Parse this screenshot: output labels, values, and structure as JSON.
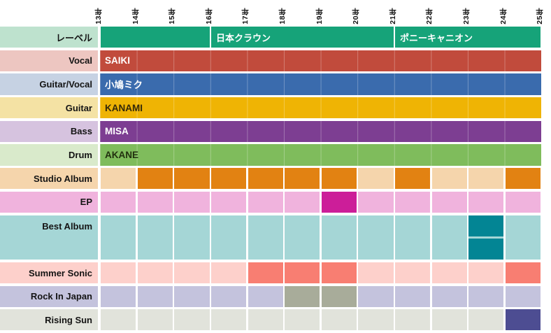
{
  "axis": {
    "year_labels": [
      "13年",
      "14年",
      "15年",
      "16年",
      "17年",
      "18年",
      "19年",
      "20年",
      "21年",
      "22年",
      "23年",
      "24年",
      "25年"
    ]
  },
  "rows": [
    {
      "id": "label-row",
      "label": "レーベル",
      "type": "segments",
      "labelBg": "#BEE2CE",
      "color": "#16A379",
      "textColor": "#FFFFFF",
      "segments": [
        {
          "from": 0,
          "to": 3,
          "text": ""
        },
        {
          "from": 3,
          "to": 8,
          "text": "日本クラウン"
        },
        {
          "from": 8,
          "to": 12,
          "text": "ポニーキャニオン"
        }
      ]
    },
    {
      "id": "vocal",
      "label": "Vocal",
      "type": "bar",
      "labelBg": "#EDC6C1",
      "color": "#C14B3C",
      "text": "SAIKI",
      "textColor": "#FFFFFF"
    },
    {
      "id": "guitar-vocal",
      "label": "Guitar/Vocal",
      "type": "bar",
      "labelBg": "#C6D2E3",
      "color": "#3A6BAD",
      "text": "小鳩ミク",
      "textColor": "#FFFFFF"
    },
    {
      "id": "guitar",
      "label": "Guitar",
      "type": "bar",
      "labelBg": "#F4E2A4",
      "color": "#EFB404",
      "text": "KANAMI",
      "textColor": "#33280A"
    },
    {
      "id": "bass",
      "label": "Bass",
      "type": "bar",
      "labelBg": "#D6C3DF",
      "color": "#7D3E92",
      "text": "MISA",
      "textColor": "#FFFFFF"
    },
    {
      "id": "drum",
      "label": "Drum",
      "type": "bar",
      "labelBg": "#D9EACB",
      "color": "#7FBC5C",
      "text": "AKANE",
      "textColor": "#22300F"
    },
    {
      "id": "studio-album",
      "label": "Studio Album",
      "type": "cells",
      "labelBg": "#F5D5AC",
      "rowBg": "#F5D5AC",
      "blockColor": "#E28212",
      "filled": [
        1,
        2,
        3,
        4,
        5,
        6,
        8,
        11
      ]
    },
    {
      "id": "ep",
      "label": "EP",
      "type": "cells",
      "labelBg": "#F0B3DD",
      "rowBg": "#F0B3DD",
      "blockColor": "#CC1E99",
      "filled": [
        6
      ]
    },
    {
      "id": "best-album",
      "label": "Best Album",
      "type": "cells",
      "labelBg": "#A5D6D6",
      "rowBg": "#A5D6D6",
      "blockColor": "#038594",
      "subrows": 2,
      "filled": [
        10
      ],
      "filled2": [
        10
      ]
    },
    {
      "id": "summer-sonic",
      "label": "Summer Sonic",
      "type": "cells",
      "labelBg": "#FDD0CB",
      "rowBg": "#FDD0CB",
      "blockColor": "#F87E72",
      "filled": [
        4,
        5,
        6,
        11
      ]
    },
    {
      "id": "rock-in-japan",
      "label": "Rock In Japan",
      "type": "cells",
      "labelBg": "#C4C3DD",
      "rowBg": "#C4C3DD",
      "blockColor": "#A8AC9A",
      "filled": [
        5,
        6
      ]
    },
    {
      "id": "rising-sun",
      "label": "Rising Sun",
      "type": "cells",
      "labelBg": "#E1E3DB",
      "rowBg": "#E1E3DB",
      "blockColor": "#4D4D92",
      "filled": [
        11
      ]
    }
  ],
  "chart_data": {
    "type": "table",
    "title": "",
    "x_tick_labels": [
      "13年",
      "14年",
      "15年",
      "16年",
      "17年",
      "18年",
      "19年",
      "20年",
      "21年",
      "22年",
      "23年",
      "24年",
      "25年"
    ],
    "layout": {
      "grid": true,
      "tick_label_rotation": -90,
      "row_order_top_to_bottom": true
    },
    "rows": [
      {
        "label": "レーベル",
        "kind": "span",
        "spans": [
          {
            "start": "13年",
            "end": "16年",
            "text": ""
          },
          {
            "start": "16年",
            "end": "21年",
            "text": "日本クラウン"
          },
          {
            "start": "21年",
            "end": "25年",
            "text": "ポニーキャニオン"
          }
        ]
      },
      {
        "label": "Vocal",
        "kind": "span",
        "spans": [
          {
            "start": "13年",
            "end": "25年",
            "text": "SAIKI"
          }
        ]
      },
      {
        "label": "Guitar/Vocal",
        "kind": "span",
        "spans": [
          {
            "start": "13年",
            "end": "25年",
            "text": "小鳩ミク"
          }
        ]
      },
      {
        "label": "Guitar",
        "kind": "span",
        "spans": [
          {
            "start": "13年",
            "end": "25年",
            "text": "KANAMI"
          }
        ]
      },
      {
        "label": "Bass",
        "kind": "span",
        "spans": [
          {
            "start": "13年",
            "end": "25年",
            "text": "MISA"
          }
        ]
      },
      {
        "label": "Drum",
        "kind": "span",
        "spans": [
          {
            "start": "13年",
            "end": "25年",
            "text": "AKANE"
          }
        ]
      },
      {
        "label": "Studio Album",
        "kind": "marks",
        "year_slots": [
          "14年",
          "15年",
          "16年",
          "17年",
          "18年",
          "19年",
          "21年",
          "24年"
        ]
      },
      {
        "label": "EP",
        "kind": "marks",
        "year_slots": [
          "19年"
        ]
      },
      {
        "label": "Best Album",
        "kind": "marks",
        "year_slots": [
          "23年",
          "23年"
        ],
        "note": "two marks stacked vertically in same year slot"
      },
      {
        "label": "Summer Sonic",
        "kind": "marks",
        "year_slots": [
          "17年",
          "18年",
          "19年",
          "24年"
        ]
      },
      {
        "label": "Rock In Japan",
        "kind": "marks",
        "year_slots": [
          "18年",
          "19年"
        ]
      },
      {
        "label": "Rising Sun",
        "kind": "marks",
        "year_slots": [
          "24年"
        ]
      }
    ]
  },
  "colors": {
    "background": "#FFFFFF",
    "grid_gap": "#FFFFFF"
  }
}
